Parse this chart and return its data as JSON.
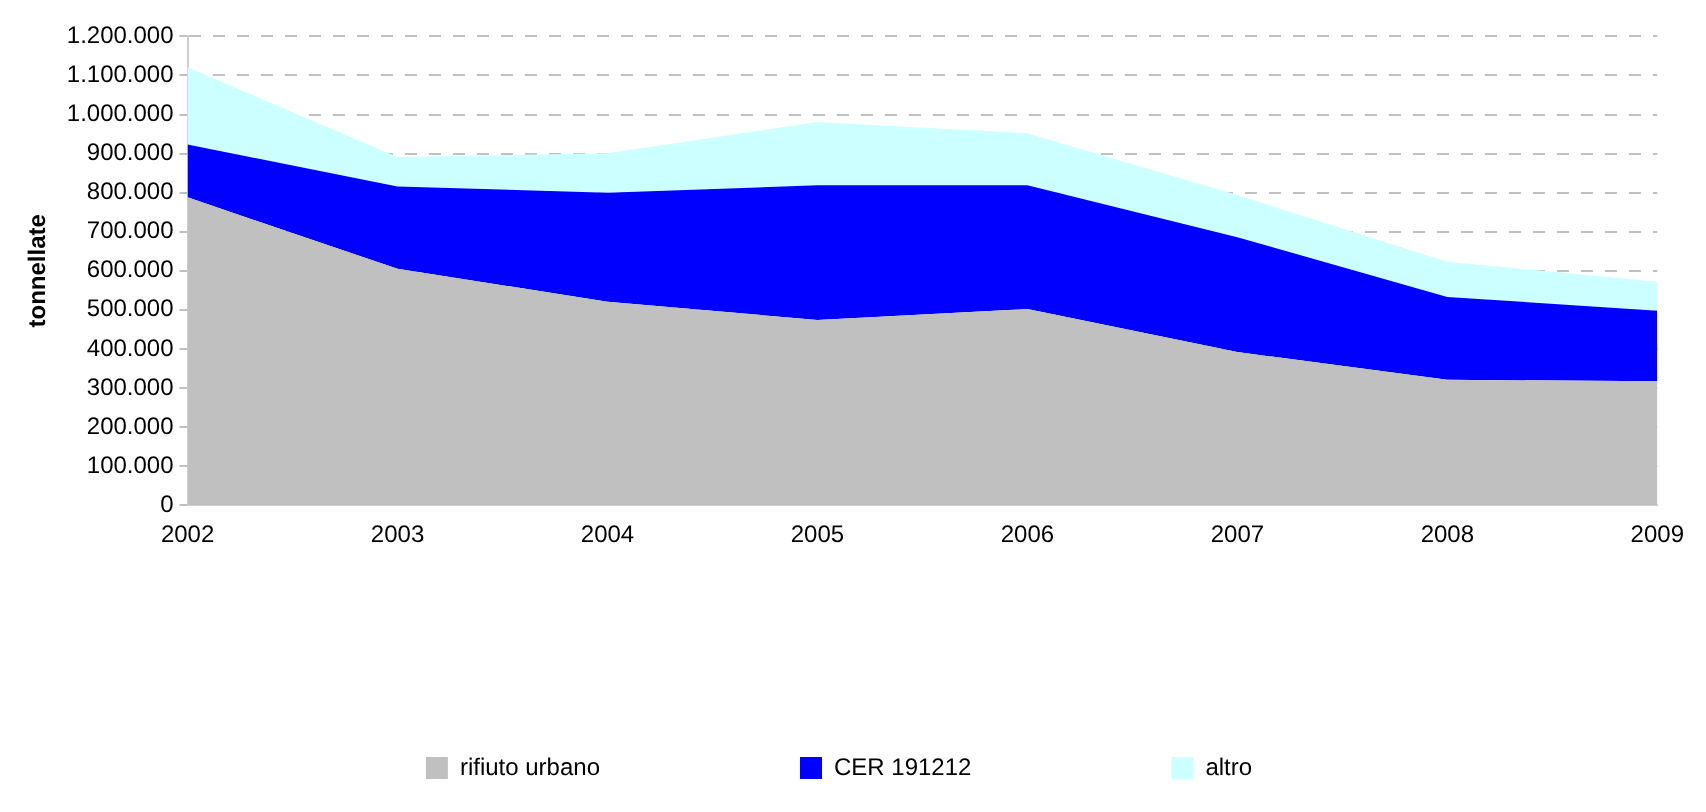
{
  "chart_data": {
    "type": "area",
    "ylabel": "tonnellate",
    "x": [
      2002,
      2003,
      2004,
      2005,
      2006,
      2007,
      2008,
      2009
    ],
    "stacked": true,
    "series": [
      {
        "name": "rifiuto urbano",
        "color": "#c0c0c0",
        "values": [
          788000,
          605000,
          521000,
          474000,
          502000,
          392000,
          321000,
          317000
        ]
      },
      {
        "name": "CER 191212",
        "color": "#0000ff",
        "values": [
          135000,
          211000,
          279000,
          345000,
          317000,
          294000,
          212000,
          181000
        ]
      },
      {
        "name": "altro",
        "color": "#ccffff",
        "values": [
          198000,
          75000,
          101000,
          162000,
          133000,
          108000,
          90000,
          74000
        ]
      }
    ],
    "xlim": [
      2002,
      2009
    ],
    "xticks": [
      2002,
      2003,
      2004,
      2005,
      2006,
      2007,
      2008,
      2009
    ],
    "ylim": [
      0,
      1200000
    ],
    "yticks": [
      0,
      {
        "value": 100000,
        "label": "100.000"
      },
      {
        "value": 200000,
        "label": "200.000"
      },
      {
        "value": 300000,
        "label": "300.000"
      },
      {
        "value": 400000,
        "label": "400.000"
      },
      {
        "value": 500000,
        "label": "500.000"
      },
      {
        "value": 600000,
        "label": "600.000"
      },
      {
        "value": 700000,
        "label": "700.000"
      },
      {
        "value": 800000,
        "label": "800.000"
      },
      {
        "value": 900000,
        "label": "900.000"
      },
      {
        "value": 1000000,
        "label": "1.000.000"
      },
      {
        "value": 1100000,
        "label": "1.100.000"
      },
      {
        "value": 1200000,
        "label": "1.200.000"
      }
    ],
    "grid": true,
    "legend": "bottom"
  }
}
